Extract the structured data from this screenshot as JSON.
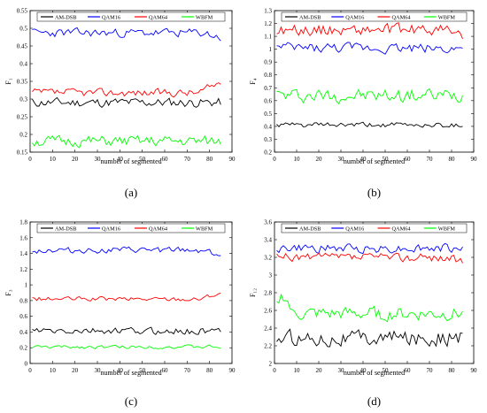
{
  "colors": {
    "AM-DSB": "#000000",
    "QAM16": "#0000ff",
    "QAM64": "#ff0000",
    "WBFM": "#00ff00"
  },
  "chart_data": [
    {
      "type": "line",
      "panel_label": "(a)",
      "ylabel": "F₁",
      "xlabel": "number of segmented",
      "xlim": [
        0,
        90
      ],
      "ylim": [
        0.15,
        0.55
      ],
      "xticks": [
        0,
        10,
        20,
        30,
        40,
        50,
        60,
        70,
        80,
        90
      ],
      "yticks": [
        0.15,
        0.2,
        0.25,
        0.3,
        0.35,
        0.4,
        0.45,
        0.5,
        0.55
      ],
      "legend": [
        "AM-DSB",
        "QAM16",
        "QAM64",
        "WBFM"
      ],
      "legend_position": "top",
      "series": [
        {
          "name": "AM-DSB",
          "base": 0.29,
          "amp": 0.012,
          "seed": 11
        },
        {
          "name": "QAM16",
          "base": 0.487,
          "amp": 0.011,
          "seed": 23,
          "end_dip": -0.015
        },
        {
          "name": "QAM64",
          "base": 0.318,
          "amp": 0.01,
          "seed": 37,
          "end_rise": 0.03
        },
        {
          "name": "WBFM",
          "base": 0.18,
          "amp": 0.014,
          "seed": 51
        }
      ]
    },
    {
      "type": "line",
      "panel_label": "(b)",
      "ylabel": "F₄",
      "xlabel": "number of segmented",
      "xlim": [
        0,
        90
      ],
      "ylim": [
        0.2,
        1.3
      ],
      "xticks": [
        0,
        10,
        20,
        30,
        40,
        50,
        60,
        70,
        80,
        90
      ],
      "yticks": [
        0.2,
        0.3,
        0.4,
        0.5,
        0.6,
        0.7,
        0.8,
        0.9,
        1.0,
        1.1,
        1.2,
        1.3
      ],
      "legend": [
        "AM-DSB",
        "QAM16",
        "QAM64",
        "WBFM"
      ],
      "legend_position": "top",
      "series": [
        {
          "name": "AM-DSB",
          "base": 0.41,
          "amp": 0.018,
          "seed": 61
        },
        {
          "name": "QAM16",
          "base": 1.01,
          "amp": 0.035,
          "seed": 73
        },
        {
          "name": "QAM64",
          "base": 1.15,
          "amp": 0.04,
          "seed": 89,
          "end_dip": -0.06
        },
        {
          "name": "WBFM",
          "base": 0.64,
          "amp": 0.05,
          "seed": 97
        }
      ]
    },
    {
      "type": "line",
      "panel_label": "(c)",
      "ylabel": "F₃",
      "xlabel": "number of segmented",
      "xlim": [
        0,
        90
      ],
      "ylim": [
        0,
        1.8
      ],
      "xticks": [
        0,
        10,
        20,
        30,
        40,
        50,
        60,
        70,
        80,
        90
      ],
      "yticks": [
        0,
        0.2,
        0.4,
        0.6,
        0.8,
        1.0,
        1.2,
        1.4,
        1.6,
        1.8
      ],
      "legend": [
        "AM-DSB",
        "QAM16",
        "QAM64",
        "WBFM"
      ],
      "legend_position": "top",
      "series": [
        {
          "name": "AM-DSB",
          "base": 0.41,
          "amp": 0.04,
          "seed": 103
        },
        {
          "name": "QAM16",
          "base": 1.44,
          "amp": 0.035,
          "seed": 113,
          "end_dip": -0.06
        },
        {
          "name": "QAM64",
          "base": 0.82,
          "amp": 0.025,
          "seed": 127,
          "end_rise": 0.08
        },
        {
          "name": "WBFM",
          "base": 0.21,
          "amp": 0.02,
          "seed": 131
        }
      ]
    },
    {
      "type": "line",
      "panel_label": "(d)",
      "ylabel": "F₁₂",
      "xlabel": "number of segmented",
      "xlim": [
        0,
        90
      ],
      "ylim": [
        2.0,
        3.6
      ],
      "xticks": [
        0,
        10,
        20,
        30,
        40,
        50,
        60,
        70,
        80,
        90
      ],
      "yticks": [
        2.0,
        2.2,
        2.4,
        2.6,
        2.8,
        3.0,
        3.2,
        3.4,
        3.6
      ],
      "legend": [
        "AM-DSB",
        "QAM16",
        "QAM64",
        "WBFM"
      ],
      "legend_position": "top",
      "series": [
        {
          "name": "AM-DSB",
          "base": 2.29,
          "amp": 0.08,
          "seed": 137
        },
        {
          "name": "QAM16",
          "base": 3.3,
          "amp": 0.045,
          "seed": 149
        },
        {
          "name": "QAM64",
          "base": 3.2,
          "amp": 0.045,
          "seed": 157,
          "end_dip": -0.05
        },
        {
          "name": "WBFM",
          "base": 2.56,
          "amp": 0.07,
          "seed": 163,
          "start_rise": 0.2
        }
      ]
    }
  ]
}
